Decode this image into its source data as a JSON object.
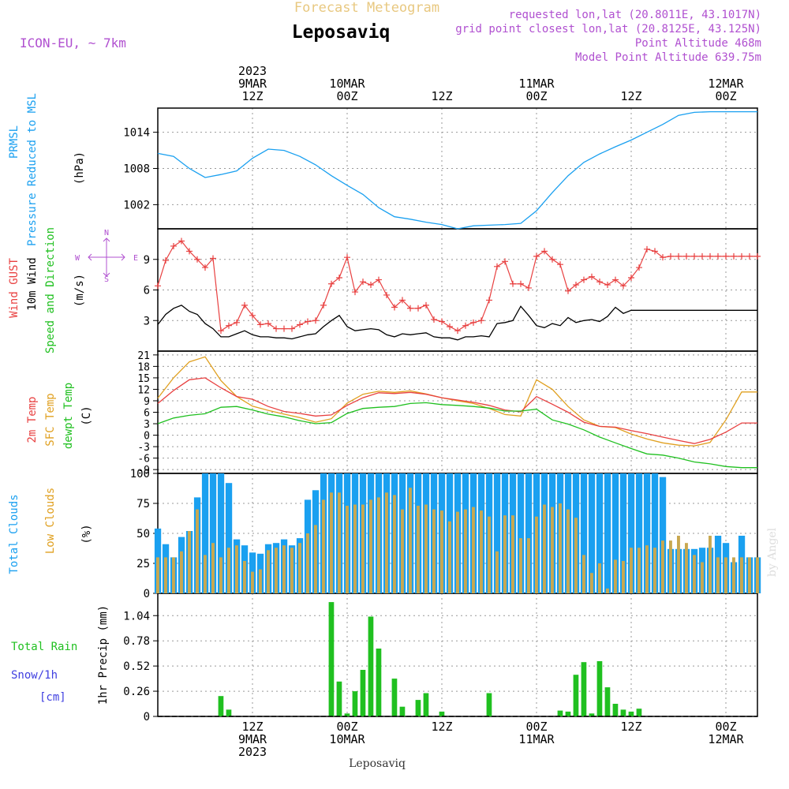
{
  "header": {
    "product": "Forecast Meteogram",
    "location": "Leposaviq",
    "model": "ICON-EU, ~ 7km",
    "requested": "requested lon,lat (20.8011E, 43.1017N)",
    "grid_point": "grid point closest lon,lat (20.8125E, 43.125N)",
    "point_altitude": "Point Altitude 468m",
    "model_altitude": "Model Point Altitude 639.75m",
    "footer_location": "Leposaviq",
    "credit": "by Angel"
  },
  "time_axis": {
    "top_labels": [
      {
        "hour": 12,
        "lines": [
          "2023",
          "9MAR",
          "12Z"
        ]
      },
      {
        "hour": 24,
        "lines": [
          "10MAR",
          "00Z"
        ]
      },
      {
        "hour": 36,
        "lines": [
          "12Z"
        ]
      },
      {
        "hour": 48,
        "lines": [
          "11MAR",
          "00Z"
        ]
      },
      {
        "hour": 60,
        "lines": [
          "12Z"
        ]
      },
      {
        "hour": 72,
        "lines": [
          "12MAR",
          "00Z"
        ]
      }
    ],
    "bottom_labels": [
      {
        "hour": 12,
        "lines": [
          "12Z",
          "9MAR",
          "2023"
        ]
      },
      {
        "hour": 24,
        "lines": [
          "00Z",
          "10MAR"
        ]
      },
      {
        "hour": 36,
        "lines": [
          "12Z"
        ]
      },
      {
        "hour": 48,
        "lines": [
          "00Z",
          "11MAR"
        ]
      },
      {
        "hour": 60,
        "lines": [
          "12Z"
        ]
      },
      {
        "hour": 72,
        "lines": [
          "00Z",
          "12MAR"
        ]
      }
    ]
  },
  "panels": {
    "pressure": {
      "labels": [
        "PRMSL",
        "Pressure Reduced to MSL",
        "(hPa)"
      ],
      "ticks": [
        "1014",
        "1008",
        "1002"
      ]
    },
    "wind": {
      "labels": [
        "Wind GUST",
        "10m Wind",
        "Speed and Direction",
        "(m/s)"
      ],
      "ticks": [
        "9",
        "6",
        "3"
      ],
      "compass": {
        "n": "N",
        "s": "S",
        "w": "W",
        "e": "E"
      }
    },
    "temperature": {
      "labels": [
        "2m Temp",
        "SFC Temp",
        "dewpt Temp",
        "(C)"
      ],
      "ticks": [
        "21",
        "18",
        "15",
        "12",
        "9",
        "6",
        "3",
        "0",
        "-3",
        "-6",
        "-9"
      ]
    },
    "clouds": {
      "labels": [
        "Total Clouds",
        "Low Clouds",
        "(%)"
      ],
      "ticks": [
        "100",
        "75",
        "50",
        "25",
        "0"
      ]
    },
    "precip": {
      "labels": [
        "Total Rain",
        "Snow/1h",
        "[cm]",
        "1hr Precip (mm)"
      ],
      "ticks": [
        "1.04",
        "0.78",
        "0.52",
        "0.26",
        "0"
      ]
    }
  },
  "colors": {
    "pressure": "#1aa0f0",
    "gust": "#e84040",
    "wind": "#000000",
    "t2m": "#e84040",
    "tsfc": "#e0a020",
    "dewpt": "#20c020",
    "total_clouds": "#1aa0f0",
    "low_clouds": "#c8a850",
    "rain": "#20c020",
    "title": "#000000",
    "product": "#e8c880",
    "meta": "#b050d0",
    "label_blue": "#1aa0f0",
    "label_red": "#e84040",
    "label_orange": "#e0a020",
    "label_green": "#20c020",
    "label_snow": "#4040e0"
  },
  "chart_data": [
    {
      "type": "line",
      "name": "pressure",
      "ylim": [
        998,
        1018
      ],
      "x": [
        0,
        2,
        4,
        6,
        8,
        10,
        12,
        14,
        16,
        18,
        20,
        22,
        24,
        26,
        28,
        30,
        32,
        34,
        36,
        38,
        40,
        42,
        44,
        46,
        48,
        50,
        52,
        54,
        56,
        58,
        60,
        62,
        64,
        66,
        68,
        70,
        72,
        74,
        76
      ],
      "series": [
        {
          "name": "PRMSL",
          "values": [
            1010.5,
            1010.0,
            1008.0,
            1006.5,
            1007.0,
            1007.6,
            1009.7,
            1011.2,
            1011.0,
            1010.0,
            1008.6,
            1006.8,
            1005.2,
            1003.7,
            1001.5,
            1000.0,
            999.6,
            999.1,
            998.7,
            998.0,
            998.5,
            998.6,
            998.7,
            998.9,
            1001.0,
            1004.0,
            1006.8,
            1009.0,
            1010.4,
            1011.6,
            1012.7,
            1014.0,
            1015.3,
            1016.8,
            1017.3,
            1017.4,
            1017.4,
            1017.4,
            1017.4
          ]
        }
      ]
    },
    {
      "type": "line",
      "name": "wind",
      "ylim": [
        0,
        12
      ],
      "x": [
        0,
        1,
        2,
        3,
        4,
        5,
        6,
        7,
        8,
        9,
        10,
        11,
        12,
        13,
        14,
        15,
        16,
        17,
        18,
        19,
        20,
        21,
        22,
        23,
        24,
        25,
        26,
        27,
        28,
        29,
        30,
        31,
        32,
        33,
        34,
        35,
        36,
        37,
        38,
        39,
        40,
        41,
        42,
        43,
        44,
        45,
        46,
        47,
        48,
        49,
        50,
        51,
        52,
        53,
        54,
        55,
        56,
        57,
        58,
        59,
        60,
        61,
        62,
        63,
        64,
        65,
        66,
        67,
        68,
        69,
        70,
        71,
        72,
        73,
        74,
        75,
        76
      ],
      "series": [
        {
          "name": "Wind GUST",
          "values": [
            6.4,
            8.9,
            10.3,
            10.8,
            9.8,
            9.0,
            8.2,
            9.1,
            2.0,
            2.5,
            2.8,
            4.5,
            3.5,
            2.6,
            2.7,
            2.2,
            2.2,
            2.2,
            2.6,
            2.9,
            3.0,
            4.5,
            6.6,
            7.2,
            9.2,
            5.8,
            6.8,
            6.5,
            7.0,
            5.5,
            4.3,
            5.0,
            4.2,
            4.2,
            4.5,
            3.1,
            2.9,
            2.4,
            2.0,
            2.5,
            2.8,
            3.0,
            5.0,
            8.3,
            8.8,
            6.6,
            6.6,
            6.2,
            9.3,
            9.8,
            9.0,
            8.5,
            5.9,
            6.5,
            7.0,
            7.3,
            6.8,
            6.5,
            7.0,
            6.4,
            7.2,
            8.2,
            10.0,
            9.8,
            9.2,
            9.3,
            9.3,
            9.3,
            9.3,
            9.3,
            9.3,
            9.3,
            9.3,
            9.3,
            9.3,
            9.3,
            9.3
          ]
        },
        {
          "name": "10m Wind",
          "values": [
            2.6,
            3.6,
            4.2,
            4.5,
            3.9,
            3.6,
            2.7,
            2.2,
            1.4,
            1.4,
            1.7,
            2.0,
            1.6,
            1.4,
            1.4,
            1.3,
            1.3,
            1.2,
            1.4,
            1.6,
            1.7,
            2.4,
            3.0,
            3.5,
            2.4,
            2.0,
            2.1,
            2.2,
            2.1,
            1.6,
            1.4,
            1.7,
            1.6,
            1.7,
            1.8,
            1.4,
            1.3,
            1.3,
            1.1,
            1.4,
            1.4,
            1.5,
            1.4,
            2.7,
            2.8,
            3.0,
            4.4,
            3.5,
            2.5,
            2.3,
            2.7,
            2.5,
            3.3,
            2.8,
            3.0,
            3.1,
            2.9,
            3.4,
            4.3,
            3.7,
            4.0,
            4.0,
            4.0,
            4.0,
            4.0,
            4.0,
            4.0,
            4.0,
            4.0,
            4.0,
            4.0,
            4.0,
            4.0,
            4.0,
            4.0,
            4.0,
            4.0
          ]
        }
      ]
    },
    {
      "type": "line",
      "name": "temperature",
      "ylim": [
        -10,
        22
      ],
      "x": [
        0,
        2,
        4,
        6,
        8,
        10,
        12,
        14,
        16,
        18,
        20,
        22,
        24,
        26,
        28,
        30,
        32,
        34,
        36,
        38,
        40,
        42,
        44,
        46,
        48,
        50,
        52,
        54,
        56,
        58,
        60,
        62,
        64,
        66,
        68,
        70,
        72,
        74,
        76
      ],
      "series": [
        {
          "name": "2m Temp",
          "values": [
            8.3,
            11.7,
            14.5,
            15.0,
            12.4,
            10.1,
            9.4,
            7.5,
            6.2,
            5.7,
            5.0,
            5.3,
            7.8,
            9.8,
            11.1,
            10.9,
            11.2,
            10.7,
            9.8,
            9.2,
            8.6,
            7.8,
            6.6,
            6.1,
            10.1,
            8.1,
            6.0,
            3.4,
            2.3,
            2.1,
            1.2,
            0.4,
            -0.5,
            -1.4,
            -2.2,
            -1.1,
            0.8,
            3.2,
            3.2
          ]
        },
        {
          "name": "SFC Temp",
          "values": [
            9.7,
            15.0,
            19.2,
            20.5,
            14.3,
            10.1,
            7.6,
            6.5,
            5.5,
            4.6,
            3.4,
            4.3,
            8.4,
            10.7,
            11.5,
            11.2,
            11.6,
            10.8,
            9.8,
            9.0,
            8.3,
            7.0,
            5.4,
            5.0,
            14.5,
            12.0,
            7.5,
            4.0,
            2.3,
            2.0,
            0.3,
            -1.0,
            -2.0,
            -2.6,
            -2.8,
            -1.9,
            4.0,
            11.3,
            11.3
          ]
        },
        {
          "name": "dewpt Temp",
          "values": [
            3.0,
            4.5,
            5.2,
            5.6,
            7.3,
            7.5,
            6.6,
            5.5,
            4.8,
            3.8,
            3.0,
            3.3,
            5.7,
            7.0,
            7.3,
            7.5,
            8.3,
            8.5,
            8.0,
            7.8,
            7.5,
            7.1,
            6.3,
            6.3,
            6.8,
            4.0,
            2.9,
            1.4,
            -0.5,
            -2.0,
            -3.5,
            -4.9,
            -5.2,
            -6.0,
            -7.0,
            -7.5,
            -8.2,
            -8.5,
            -8.5
          ]
        }
      ]
    },
    {
      "type": "bar",
      "name": "clouds",
      "ylim": [
        0,
        100
      ],
      "x": [
        0,
        1,
        2,
        3,
        4,
        5,
        6,
        7,
        8,
        9,
        10,
        11,
        12,
        13,
        14,
        15,
        16,
        17,
        18,
        19,
        20,
        21,
        22,
        23,
        24,
        25,
        26,
        27,
        28,
        29,
        30,
        31,
        32,
        33,
        34,
        35,
        36,
        37,
        38,
        39,
        40,
        41,
        42,
        43,
        44,
        45,
        46,
        47,
        48,
        49,
        50,
        51,
        52,
        53,
        54,
        55,
        56,
        57,
        58,
        59,
        60,
        61,
        62,
        63,
        64,
        65,
        66,
        67,
        68,
        69,
        70,
        71,
        72,
        73,
        74,
        75,
        76
      ],
      "series": [
        {
          "name": "Total Clouds",
          "values": [
            54,
            41,
            30,
            47,
            52,
            80,
            100,
            100,
            100,
            92,
            45,
            40,
            34,
            33,
            41,
            42,
            45,
            40,
            46,
            78,
            86,
            100,
            100,
            100,
            100,
            100,
            100,
            100,
            100,
            100,
            100,
            100,
            100,
            100,
            100,
            100,
            100,
            100,
            100,
            100,
            100,
            100,
            100,
            100,
            100,
            100,
            100,
            100,
            100,
            100,
            100,
            100,
            100,
            100,
            100,
            100,
            100,
            100,
            100,
            100,
            100,
            100,
            100,
            100,
            97,
            37,
            37,
            37,
            37,
            38,
            38,
            48,
            42,
            26,
            48,
            30,
            30
          ]
        },
        {
          "name": "Low Clouds",
          "values": [
            30,
            30,
            30,
            35,
            52,
            70,
            32,
            42,
            30,
            38,
            40,
            27,
            18,
            20,
            36,
            38,
            40,
            38,
            42,
            50,
            57,
            78,
            84,
            84,
            73,
            74,
            74,
            78,
            80,
            84,
            82,
            70,
            88,
            73,
            74,
            70,
            69,
            60,
            68,
            70,
            72,
            69,
            64,
            35,
            65,
            65,
            46,
            46,
            64,
            74,
            72,
            75,
            70,
            63,
            32,
            17,
            25,
            4,
            28,
            27,
            38,
            38,
            40,
            38,
            44,
            44,
            48,
            42,
            32,
            26,
            48,
            30,
            30,
            30,
            30,
            30,
            30
          ]
        }
      ]
    },
    {
      "type": "bar",
      "name": "precip",
      "ylim": [
        0,
        1.27
      ],
      "x": [
        0,
        1,
        2,
        3,
        4,
        5,
        6,
        7,
        8,
        9,
        10,
        11,
        12,
        13,
        14,
        15,
        16,
        17,
        18,
        19,
        20,
        21,
        22,
        23,
        24,
        25,
        26,
        27,
        28,
        29,
        30,
        31,
        32,
        33,
        34,
        35,
        36,
        37,
        38,
        39,
        40,
        41,
        42,
        43,
        44,
        45,
        46,
        47,
        48,
        49,
        50,
        51,
        52,
        53,
        54,
        55,
        56,
        57,
        58,
        59,
        60,
        61,
        62,
        63,
        64,
        65,
        66,
        67,
        68,
        69,
        70,
        71,
        72,
        73,
        74,
        75,
        76
      ],
      "series": [
        {
          "name": "Total Rain",
          "values": [
            0,
            0,
            0,
            0,
            0,
            0,
            0,
            0,
            0.21,
            0.07,
            0,
            0,
            0,
            0,
            0,
            0,
            0,
            0,
            0,
            0,
            0,
            0,
            1.18,
            0.36,
            0.03,
            0.26,
            0.48,
            1.03,
            0.7,
            0,
            0.39,
            0.1,
            0,
            0.17,
            0.24,
            0,
            0.05,
            0,
            0,
            0,
            0,
            0,
            0.24,
            0,
            0,
            0,
            0,
            0,
            0,
            0,
            0,
            0.06,
            0.05,
            0.43,
            0.56,
            0.03,
            0.57,
            0.3,
            0.13,
            0.07,
            0.05,
            0.08,
            0,
            0,
            0,
            0,
            0,
            0,
            0,
            0,
            0,
            0,
            0,
            0,
            0,
            0,
            0
          ]
        },
        {
          "name": "Snow/1h",
          "values": [
            0,
            0,
            0,
            0,
            0,
            0,
            0,
            0,
            0,
            0,
            0,
            0,
            0,
            0,
            0,
            0,
            0,
            0,
            0,
            0,
            0,
            0,
            0,
            0,
            0,
            0,
            0,
            0,
            0,
            0,
            0,
            0,
            0,
            0,
            0,
            0,
            0,
            0,
            0,
            0,
            0,
            0,
            0,
            0,
            0,
            0,
            0,
            0,
            0,
            0,
            0,
            0,
            0,
            0,
            0,
            0,
            0,
            0,
            0,
            0,
            0,
            0,
            0,
            0,
            0,
            0,
            0,
            0,
            0,
            0,
            0,
            0,
            0,
            0,
            0,
            0,
            0
          ]
        }
      ]
    }
  ]
}
